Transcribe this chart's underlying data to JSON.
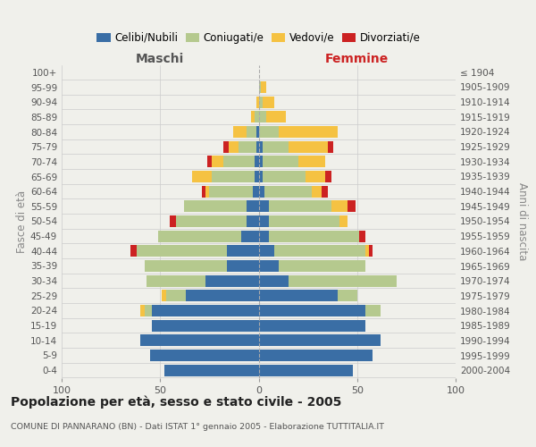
{
  "age_groups": [
    "100+",
    "95-99",
    "90-94",
    "85-89",
    "80-84",
    "75-79",
    "70-74",
    "65-69",
    "60-64",
    "55-59",
    "50-54",
    "45-49",
    "40-44",
    "35-39",
    "30-34",
    "25-29",
    "20-24",
    "15-19",
    "10-14",
    "5-9",
    "0-4"
  ],
  "birth_years": [
    "≤ 1904",
    "1905-1909",
    "1910-1914",
    "1915-1919",
    "1920-1924",
    "1925-1929",
    "1930-1934",
    "1935-1939",
    "1940-1944",
    "1945-1949",
    "1950-1954",
    "1955-1959",
    "1960-1964",
    "1965-1969",
    "1970-1974",
    "1975-1979",
    "1980-1984",
    "1985-1989",
    "1990-1994",
    "1995-1999",
    "2000-2004"
  ],
  "maschi_celibi": [
    0,
    0,
    0,
    0,
    1,
    1,
    2,
    2,
    3,
    6,
    6,
    9,
    16,
    16,
    27,
    37,
    54,
    54,
    60,
    55,
    48
  ],
  "maschi_coniugati": [
    0,
    0,
    0,
    2,
    5,
    9,
    16,
    22,
    22,
    32,
    36,
    42,
    46,
    42,
    30,
    10,
    4,
    0,
    0,
    0,
    0
  ],
  "maschi_vedovi": [
    0,
    0,
    1,
    2,
    7,
    5,
    6,
    10,
    2,
    0,
    0,
    0,
    0,
    0,
    0,
    2,
    2,
    0,
    0,
    0,
    0
  ],
  "maschi_divorziati": [
    0,
    0,
    0,
    0,
    0,
    3,
    2,
    0,
    2,
    0,
    3,
    0,
    3,
    0,
    0,
    0,
    0,
    0,
    0,
    0,
    0
  ],
  "femmine_celibi": [
    0,
    0,
    0,
    0,
    0,
    2,
    2,
    2,
    3,
    5,
    5,
    5,
    8,
    10,
    15,
    40,
    54,
    54,
    62,
    58,
    48
  ],
  "femmine_coniugati": [
    0,
    1,
    2,
    4,
    10,
    13,
    18,
    22,
    24,
    32,
    36,
    46,
    46,
    44,
    55,
    10,
    8,
    0,
    0,
    0,
    0
  ],
  "femmine_vedovi": [
    0,
    3,
    6,
    10,
    30,
    20,
    14,
    10,
    5,
    8,
    4,
    0,
    2,
    0,
    0,
    0,
    0,
    0,
    0,
    0,
    0
  ],
  "femmine_divorziati": [
    0,
    0,
    0,
    0,
    0,
    3,
    0,
    3,
    3,
    4,
    0,
    3,
    2,
    0,
    0,
    0,
    0,
    0,
    0,
    0,
    0
  ],
  "colors": {
    "celibi": "#3a6ea5",
    "coniugati": "#b5c98e",
    "vedovi": "#f5c242",
    "divorziati": "#cc2222"
  },
  "title": "Popolazione per età, sesso e stato civile - 2005",
  "subtitle": "COMUNE DI PANNARANO (BN) - Dati ISTAT 1° gennaio 2005 - Elaborazione TUTTITALIA.IT",
  "xlabel_maschi": "Maschi",
  "xlabel_femmine": "Femmine",
  "ylabel_left": "Fasce di età",
  "ylabel_right": "Anni di nascita",
  "xlim": 100,
  "background_color": "#f0f0eb",
  "grid_color": "#cccccc"
}
